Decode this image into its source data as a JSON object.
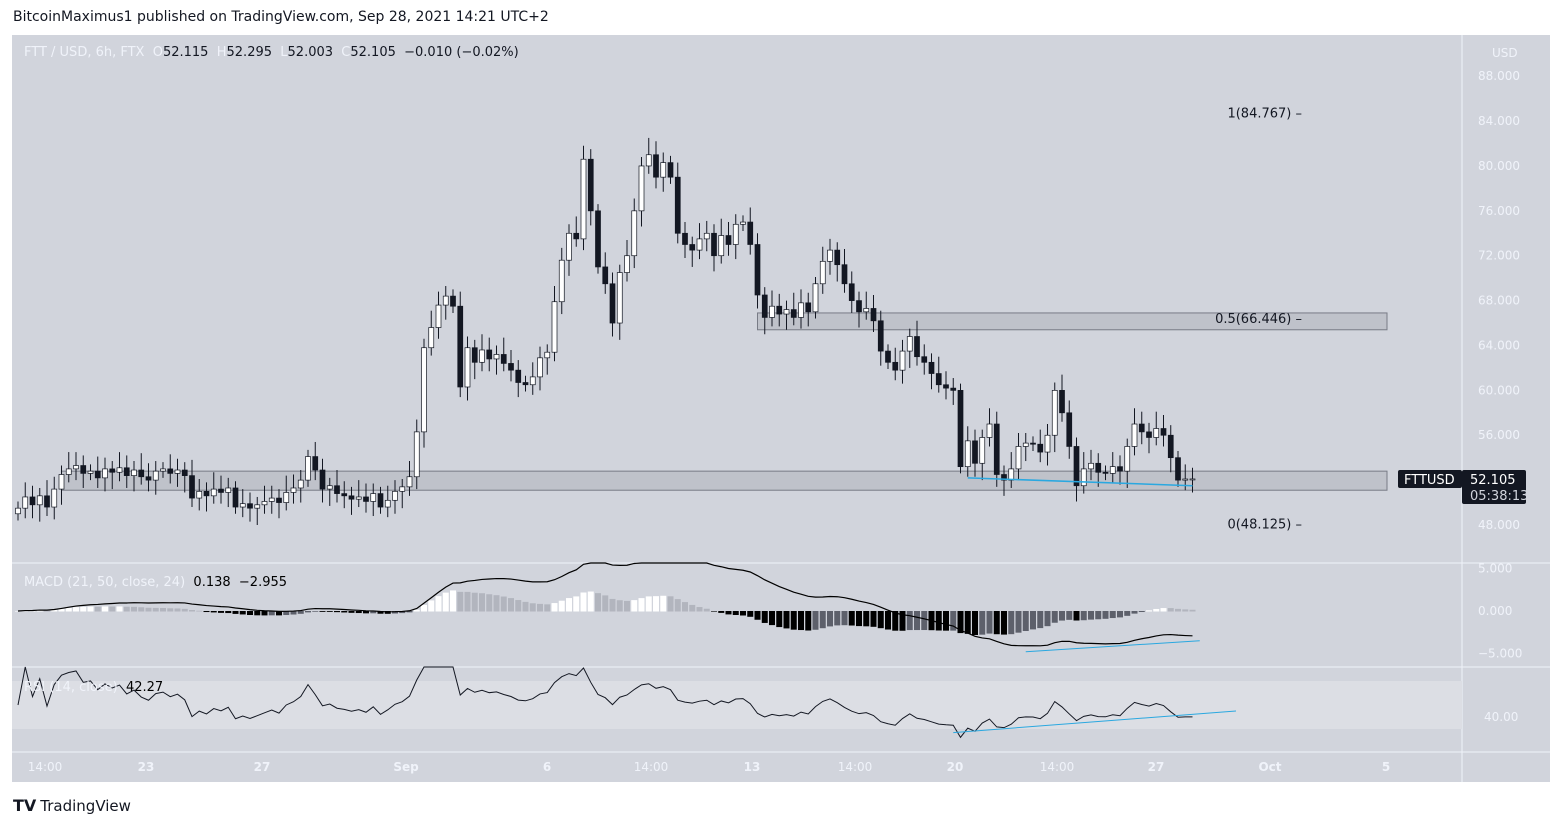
{
  "publisher_line": "BitcoinMaximus1 published on TradingView.com, Sep 28, 2021 14:21 UTC+2",
  "legend": {
    "symbol": "FTT / USD, 6h, FTX",
    "o_label": "O",
    "o": "52.115",
    "h_label": "H",
    "h": "52.295",
    "l_label": "L",
    "l": "52.003",
    "c_label": "C",
    "c": "52.105",
    "change": "−0.010 (−0.02%)"
  },
  "price_axis": {
    "unit": "USD",
    "ticks": [
      "88.000",
      "84.000",
      "80.000",
      "76.000",
      "72.000",
      "68.000",
      "64.000",
      "60.000",
      "56.000",
      "48.000"
    ]
  },
  "last_price": {
    "symbol": "FTTUSD",
    "price": "52.105",
    "countdown": "05:38:13"
  },
  "time_axis": {
    "labels": [
      "14:00",
      "23",
      "27",
      "Sep",
      "6",
      "14:00",
      "13",
      "14:00",
      "20",
      "14:00",
      "27",
      "Oct",
      "5"
    ]
  },
  "fib": [
    {
      "label": "1(84.767)",
      "value": 84.767
    },
    {
      "label": "0.5(66.446)",
      "value": 66.446
    },
    {
      "label": "0(48.125)",
      "value": 48.125
    }
  ],
  "macd": {
    "title": "MACD (21, 50, close, 24)",
    "v1": "0.138",
    "v2": "−2.955",
    "ticks": [
      "5.000",
      "0.000",
      "−5.000"
    ]
  },
  "rsi": {
    "title": "RSI (14, close)",
    "value": "42.27",
    "ticks": [
      "40.00"
    ]
  },
  "footer": {
    "brand": "TradingView"
  },
  "colors": {
    "background": "#d1d4dc",
    "up": "#ffffff",
    "down": "#131722",
    "trendline": "#2aa8e0",
    "zone": "#b2b5be"
  },
  "chart_data": {
    "type": "candlestick",
    "interval": "6h",
    "ylim": [
      46,
      90
    ],
    "closes": [
      49.5,
      50.5,
      49.8,
      50.6,
      49.6,
      51.2,
      52.5,
      53.0,
      53.3,
      52.6,
      52.8,
      52.2,
      53.0,
      52.7,
      53.1,
      52.4,
      52.9,
      52.3,
      52.0,
      52.8,
      53.0,
      52.6,
      52.9,
      52.4,
      50.4,
      51.0,
      50.6,
      51.2,
      50.9,
      51.3,
      49.6,
      49.9,
      49.5,
      49.8,
      50.1,
      50.4,
      50.0,
      50.9,
      51.3,
      52.0,
      54.1,
      52.9,
      51.2,
      51.5,
      50.8,
      50.6,
      50.3,
      50.5,
      50.1,
      50.8,
      49.6,
      50.2,
      51.0,
      51.4,
      52.3,
      56.3,
      63.8,
      65.6,
      67.6,
      68.4,
      67.5,
      60.3,
      63.8,
      62.5,
      63.6,
      62.8,
      63.2,
      62.4,
      61.8,
      60.7,
      60.5,
      61.2,
      62.9,
      63.4,
      67.9,
      71.6,
      74.0,
      73.5,
      80.6,
      76.0,
      71.0,
      69.5,
      66.0,
      70.5,
      72.0,
      76.0,
      80.0,
      81.0,
      79.0,
      80.3,
      79.0,
      74.0,
      73.0,
      72.5,
      73.5,
      74.0,
      72.0,
      73.8,
      73.0,
      74.8,
      75.0,
      73.0,
      68.5,
      66.5,
      67.5,
      66.8,
      67.2,
      66.5,
      67.8,
      67.0,
      69.5,
      71.5,
      72.5,
      71.2,
      69.5,
      68.0,
      67.0,
      67.3,
      66.2,
      63.5,
      62.5,
      61.8,
      63.5,
      64.8,
      63.0,
      62.5,
      61.5,
      60.5,
      60.2,
      60.0,
      53.2,
      55.5,
      53.5,
      55.8,
      57.0,
      52.5,
      52.0,
      53.0,
      55.0,
      55.3,
      55.2,
      54.5,
      56.0,
      60.0,
      58.0,
      55.0,
      51.5,
      53.0,
      53.5,
      52.7,
      52.6,
      53.2,
      52.8,
      55.0,
      57.0,
      56.3,
      55.8,
      56.6,
      56.0,
      54.0,
      52.0,
      52.1,
      52.105
    ],
    "zones": [
      {
        "top": 52.8,
        "bottom": 51.1,
        "start_index": 6
      },
      {
        "top": 66.9,
        "bottom": 65.4,
        "start_index": 102
      }
    ],
    "trendlines": {
      "price": [
        [
          131,
          52.2
        ],
        [
          162,
          51.5
        ]
      ],
      "macd": [
        [
          139,
          -4.8
        ],
        [
          163,
          -3.5
        ]
      ],
      "rsi": [
        [
          129,
          27
        ],
        [
          168,
          45
        ]
      ]
    }
  }
}
